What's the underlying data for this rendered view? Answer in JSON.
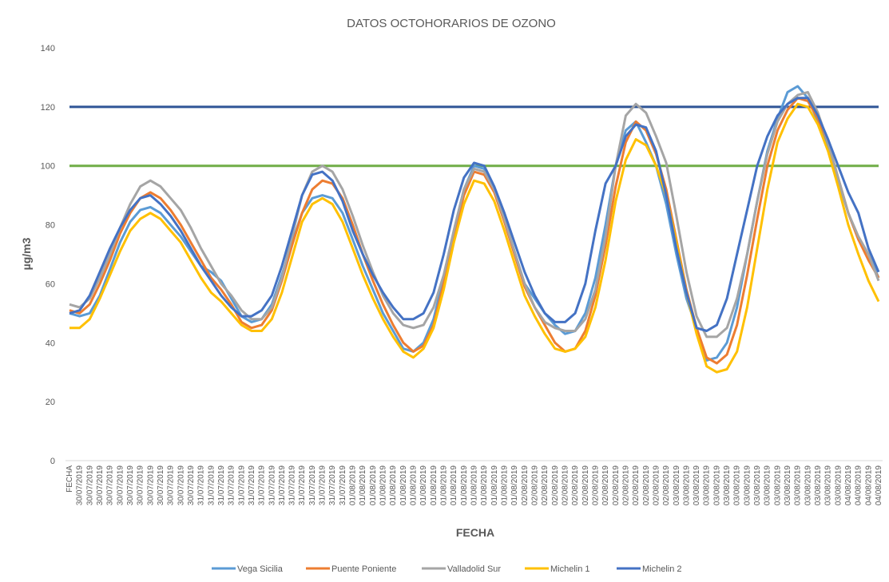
{
  "chart_data": {
    "type": "line",
    "title": "DATOS OCTOHORARIOS DE OZONO",
    "x_label": "FECHA",
    "y_label": "µg/m3",
    "categories": [
      "FECHA",
      "30/07/2019",
      "30/07/2019",
      "30/07/2019",
      "30/07/2019",
      "30/07/2019",
      "30/07/2019",
      "30/07/2019",
      "30/07/2019",
      "30/07/2019",
      "30/07/2019",
      "30/07/2019",
      "30/07/2019",
      "31/07/2019",
      "31/07/2019",
      "31/07/2019",
      "31/07/2019",
      "31/07/2019",
      "31/07/2019",
      "31/07/2019",
      "31/07/2019",
      "31/07/2019",
      "31/07/2019",
      "31/07/2019",
      "31/07/2019",
      "31/07/2019",
      "31/07/2019",
      "31/07/2019",
      "01/08/2019",
      "01/08/2019",
      "01/08/2019",
      "01/08/2019",
      "01/08/2019",
      "01/08/2019",
      "01/08/2019",
      "01/08/2019",
      "01/08/2019",
      "01/08/2019",
      "01/08/2019",
      "01/08/2019",
      "01/08/2019",
      "01/08/2019",
      "01/08/2019",
      "01/08/2019",
      "01/08/2019",
      "02/08/2019",
      "02/08/2019",
      "02/08/2019",
      "02/08/2019",
      "02/08/2019",
      "02/08/2019",
      "02/08/2019",
      "02/08/2019",
      "02/08/2019",
      "02/08/2019",
      "02/08/2019",
      "02/08/2019",
      "02/08/2019",
      "02/08/2019",
      "02/08/2019",
      "03/08/2019",
      "03/08/2019",
      "03/08/2019",
      "03/08/2019",
      "03/08/2019",
      "03/08/2019",
      "03/08/2019",
      "03/08/2019",
      "03/08/2019",
      "03/08/2019",
      "03/08/2019",
      "03/08/2019",
      "03/08/2019",
      "03/08/2019",
      "03/08/2019",
      "03/08/2019",
      "03/08/2019",
      "04/08/2019",
      "04/08/2019",
      "04/08/2019",
      "04/08/2019"
    ],
    "series": [
      {
        "name": "Vega Sicilia",
        "color": "#5b9bd5",
        "values": [
          50,
          49,
          50,
          56,
          65,
          74,
          81,
          85,
          86,
          84,
          80,
          76,
          71,
          66,
          64,
          61,
          55,
          49,
          47,
          48,
          53,
          63,
          74,
          84,
          89,
          90,
          89,
          84,
          75,
          66,
          58,
          50,
          44,
          38,
          37,
          40,
          48,
          62,
          78,
          92,
          100,
          99,
          92,
          82,
          71,
          60,
          55,
          50,
          46,
          43,
          44,
          50,
          62,
          80,
          100,
          112,
          115,
          108,
          100,
          87,
          70,
          55,
          45,
          34,
          35,
          40,
          52,
          70,
          88,
          105,
          116,
          125,
          127,
          123,
          115,
          107,
          95,
          84,
          75,
          70,
          62
        ]
      },
      {
        "name": "Puente Poniente",
        "color": "#ed7d31",
        "values": [
          51,
          50,
          53,
          60,
          68,
          77,
          84,
          89,
          91,
          89,
          85,
          80,
          74,
          68,
          62,
          58,
          53,
          47,
          45,
          46,
          51,
          61,
          73,
          84,
          92,
          95,
          94,
          89,
          80,
          70,
          61,
          53,
          46,
          40,
          37,
          39,
          46,
          60,
          76,
          90,
          98,
          97,
          91,
          81,
          70,
          59,
          52,
          46,
          40,
          37,
          38,
          44,
          56,
          73,
          93,
          108,
          115,
          112,
          104,
          92,
          75,
          58,
          45,
          35,
          33,
          36,
          46,
          63,
          82,
          100,
          112,
          119,
          123,
          122,
          116,
          108,
          96,
          84,
          75,
          68,
          62
        ]
      },
      {
        "name": "Valladolid Sur",
        "color": "#a5a5a5",
        "values": [
          53,
          52,
          55,
          62,
          70,
          79,
          87,
          93,
          95,
          93,
          89,
          85,
          79,
          72,
          66,
          60,
          56,
          51,
          48,
          48,
          52,
          62,
          76,
          90,
          98,
          100,
          98,
          92,
          83,
          73,
          64,
          56,
          50,
          46,
          45,
          46,
          52,
          63,
          78,
          92,
          99,
          98,
          92,
          82,
          71,
          60,
          52,
          47,
          45,
          44,
          44,
          48,
          58,
          76,
          100,
          117,
          121,
          118,
          110,
          101,
          83,
          64,
          49,
          42,
          42,
          45,
          55,
          70,
          88,
          104,
          115,
          121,
          124,
          125,
          118,
          108,
          96,
          84,
          76,
          70,
          61
        ]
      },
      {
        "name": "Michelin 1",
        "color": "#ffc000",
        "values": [
          45,
          45,
          48,
          55,
          63,
          71,
          78,
          82,
          84,
          82,
          78,
          74,
          68,
          62,
          57,
          54,
          50,
          46,
          44,
          44,
          48,
          57,
          69,
          81,
          87,
          89,
          87,
          81,
          72,
          63,
          55,
          48,
          42,
          37,
          35,
          38,
          45,
          58,
          74,
          87,
          95,
          94,
          88,
          78,
          67,
          56,
          49,
          43,
          38,
          37,
          38,
          42,
          52,
          68,
          88,
          102,
          109,
          107,
          100,
          90,
          74,
          57,
          43,
          32,
          30,
          31,
          37,
          52,
          72,
          92,
          108,
          116,
          121,
          120,
          114,
          105,
          93,
          80,
          70,
          61,
          54
        ]
      },
      {
        "name": "Michelin 2",
        "color": "#4472c4",
        "values": [
          50,
          51,
          56,
          64,
          72,
          79,
          85,
          89,
          90,
          87,
          83,
          78,
          72,
          66,
          61,
          56,
          52,
          49,
          49,
          51,
          56,
          66,
          78,
          90,
          97,
          98,
          95,
          88,
          78,
          70,
          63,
          57,
          52,
          48,
          48,
          50,
          57,
          70,
          85,
          96,
          101,
          100,
          93,
          84,
          74,
          64,
          56,
          50,
          47,
          47,
          50,
          60,
          78,
          94,
          100,
          110,
          114,
          113,
          105,
          90,
          72,
          57,
          45,
          44,
          46,
          55,
          70,
          85,
          100,
          110,
          117,
          121,
          123,
          123,
          117,
          109,
          100,
          91,
          84,
          72,
          64
        ]
      }
    ],
    "reference_lines": [
      {
        "value": 120,
        "color": "#2f5597"
      },
      {
        "value": 100,
        "color": "#70ad47"
      }
    ],
    "ylim": [
      0,
      140
    ],
    "yticks": [
      0,
      20,
      40,
      60,
      80,
      100,
      120,
      140
    ],
    "grid": false,
    "legend": "bottom"
  }
}
